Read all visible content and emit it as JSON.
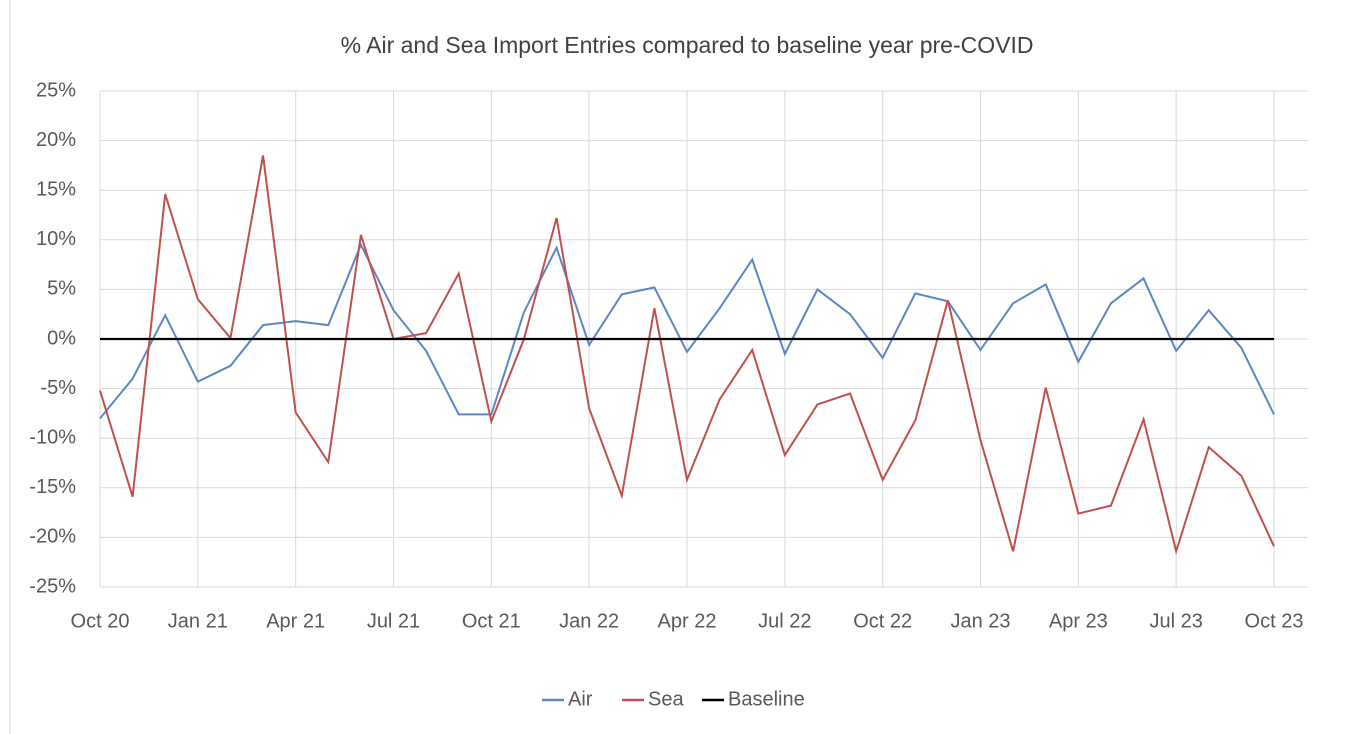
{
  "chart_data": {
    "type": "line",
    "title": "% Air and Sea Import Entries compared to baseline year pre-COVID",
    "categories": [
      "Oct 20",
      null,
      null,
      "Jan 21",
      null,
      null,
      "Apr 21",
      null,
      null,
      "Jul 21",
      null,
      null,
      "Oct 21",
      null,
      null,
      "Jan 22",
      null,
      null,
      "Apr 22",
      null,
      null,
      "Jul 22",
      null,
      null,
      "Oct 22",
      null,
      null,
      "Jan 23",
      null,
      null,
      "Apr 23",
      null,
      null,
      "Jul 23",
      null,
      null,
      "Oct 23"
    ],
    "series": [
      {
        "name": "Air",
        "color": "#5b87c4",
        "values": [
          -8,
          -4,
          2.4,
          -4.3,
          -2.7,
          1.4,
          1.8,
          1.4,
          9.5,
          2.9,
          -1.2,
          -7.6,
          -7.6,
          2.7,
          9.2,
          -0.6,
          4.5,
          5.2,
          -1.3,
          3.1,
          8,
          -1.5,
          5,
          2.5,
          -1.9,
          4.6,
          3.8,
          -1.1,
          3.6,
          5.5,
          -2.3,
          3.6,
          6.1,
          -1.2,
          2.9,
          -0.9,
          -7.6
        ]
      },
      {
        "name": "Sea",
        "color": "#c0504d",
        "values": [
          -5.2,
          -15.9,
          14.6,
          4,
          0.1,
          18.5,
          -7.4,
          -12.4,
          10.5,
          0,
          0.6,
          6.6,
          -8.3,
          0,
          12.2,
          -7,
          -15.8,
          3.1,
          -14.2,
          -6.1,
          -1.1,
          -11.7,
          -6.6,
          -5.5,
          -14.2,
          -8.2,
          3.9,
          -10.2,
          -21.4,
          -4.9,
          -17.6,
          -16.8,
          -8.1,
          -21.4,
          -10.9,
          -13.8,
          -20.9
        ]
      },
      {
        "name": "Baseline",
        "color": "#000000",
        "values": [
          0,
          0,
          0,
          0,
          0,
          0,
          0,
          0,
          0,
          0,
          0,
          0,
          0,
          0,
          0,
          0,
          0,
          0,
          0,
          0,
          0,
          0,
          0,
          0,
          0,
          0,
          0,
          0,
          0,
          0,
          0,
          0,
          0,
          0,
          0,
          0,
          0
        ]
      }
    ],
    "ylim": [
      -25,
      25
    ],
    "yticks": [
      {
        "value": -25,
        "label": "-25%"
      },
      {
        "value": -20,
        "label": "-20%"
      },
      {
        "value": -15,
        "label": "-15%"
      },
      {
        "value": -10,
        "label": "-10%"
      },
      {
        "value": -5,
        "label": "-5%"
      },
      {
        "value": 0,
        "label": "0%"
      },
      {
        "value": 5,
        "label": "5%"
      },
      {
        "value": 10,
        "label": "10%"
      },
      {
        "value": 15,
        "label": "15%"
      },
      {
        "value": 20,
        "label": "20%"
      },
      {
        "value": 25,
        "label": "25%"
      }
    ],
    "grid": true,
    "legend": "bottom"
  }
}
